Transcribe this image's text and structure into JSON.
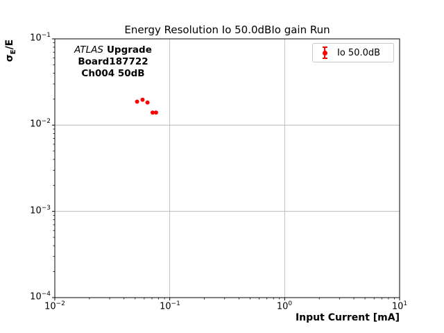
{
  "chart_data": {
    "type": "scatter",
    "title": "Energy Resolution Io 50.0dBIo gain Run",
    "xlabel": "Input Current [mA]",
    "ylabel": "σE/E",
    "ylabel_parts": {
      "sigma": "σ",
      "sub": "E",
      "rest": "/E"
    },
    "xscale": "log",
    "yscale": "log",
    "xlim": [
      0.01,
      10
    ],
    "ylim": [
      0.0001,
      0.1
    ],
    "grid": true,
    "grid_color": "#b0b0b0",
    "axis_color": "#000000",
    "background_color": "#ffffff",
    "xtick_exponents": [
      -2,
      -1,
      0,
      1
    ],
    "ytick_exponents": [
      -1,
      -2,
      -3,
      -4
    ],
    "legend_position": "upper right",
    "series": [
      {
        "name": "Io 50.0dB",
        "color": "#ff0000",
        "marker": "circle-errorbar",
        "x": [
          0.052,
          0.058,
          0.064,
          0.071,
          0.076
        ],
        "y": [
          0.0187,
          0.0197,
          0.0183,
          0.014,
          0.014
        ]
      }
    ],
    "annotation": {
      "line1_italic": "ATLAS",
      "line1_bold": "Upgrade",
      "line2": "Board187722",
      "line3": "Ch004 50dB"
    }
  }
}
